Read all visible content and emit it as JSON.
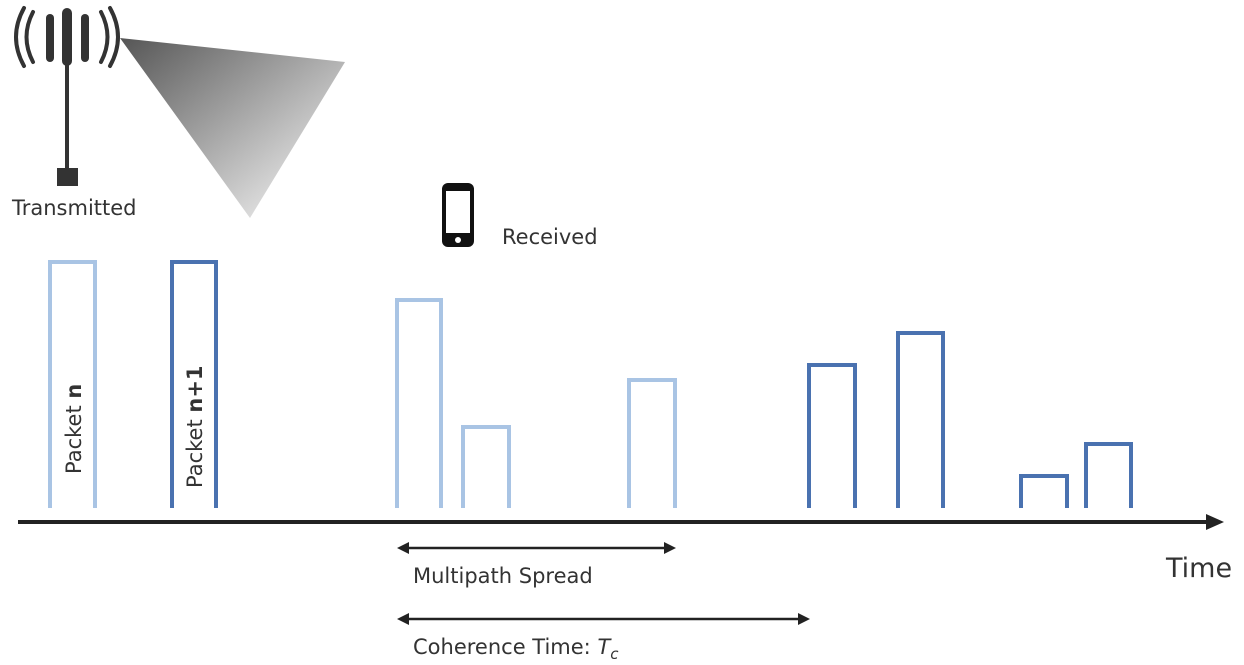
{
  "labels": {
    "transmitted": "Transmitted",
    "received": "Received",
    "packet_n_prefix": "Packet ",
    "packet_n_suffix": "n",
    "packet_n1_prefix": "Packet ",
    "packet_n1_suffix": "n+1",
    "time_axis": "Time",
    "multipath_spread": "Multipath Spread",
    "coherence_time": "Coherence Time: ",
    "coherence_symbol": "T",
    "coherence_subscript": "c"
  },
  "colors": {
    "packet_n": "#a9c4e4",
    "packet_n1": "#4a72b0",
    "axis": "#222222",
    "antenna": "#333333"
  },
  "icons": {
    "transmitter": "antenna-icon",
    "receiver": "smartphone-icon"
  }
}
